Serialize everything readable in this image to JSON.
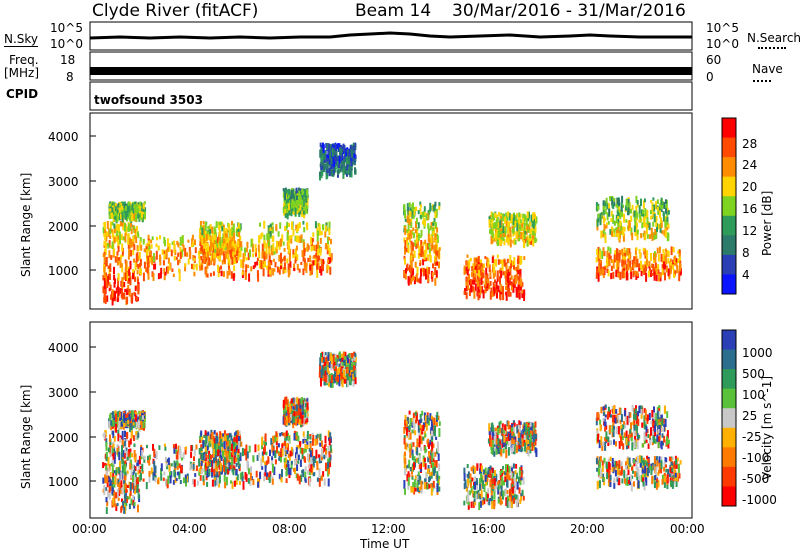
{
  "header": {
    "title": "Clyde River (fitACF)",
    "beam": "Beam 14",
    "date_range": "30/Mar/2016 - 31/Mar/2016"
  },
  "params": {
    "nsky_label": "N.Sky",
    "nsky_ticks": [
      "10^5",
      "10^0"
    ],
    "nsearch_label": "N.Search",
    "nsearch_ticks": [
      "10^5",
      "10^0"
    ],
    "freq_label": "Freq.",
    "freq_unit": "[MHz]",
    "freq_ticks": [
      "18",
      "8"
    ],
    "nave_label": "Nave",
    "nave_ticks": [
      "60",
      "0"
    ],
    "cpid_label": "CPID",
    "cpid_value": "twofsound 3503"
  },
  "chart_data": [
    {
      "type": "heatmap",
      "title": "",
      "ylabel": "Slant Range [km]",
      "xlabel": "",
      "ylim": [
        200,
        4600
      ],
      "xlim": [
        0,
        24
      ],
      "yticks": [
        "1000",
        "2000",
        "3000",
        "4000"
      ],
      "colorbar": {
        "label": "Power [dB]",
        "ticks": [
          "28",
          "24",
          "20",
          "16",
          "12",
          "8",
          "4"
        ],
        "colors": [
          "#ff0000",
          "#ff4a00",
          "#ff8c00",
          "#ffd400",
          "#7ed320",
          "#2e9b5a",
          "#2c7a6a",
          "#2a3fb5",
          "#0a14ff"
        ]
      }
    },
    {
      "type": "heatmap",
      "title": "",
      "ylabel": "Slant Range [km]",
      "xlabel": "Time UT",
      "ylim": [
        200,
        4600
      ],
      "xlim": [
        0,
        24
      ],
      "yticks": [
        "1000",
        "2000",
        "3000",
        "4000"
      ],
      "xticks": [
        "00:00",
        "04:00",
        "08:00",
        "12:00",
        "16:00",
        "20:00",
        "00:00"
      ],
      "colorbar": {
        "label": "Velocity [m s^-1]",
        "ticks": [
          "1000",
          "500",
          "100",
          "25",
          "-25",
          "-100",
          "-500",
          "-1000"
        ],
        "colors": [
          "#2a3fb5",
          "#2c6e8e",
          "#2e9b5a",
          "#59c13a",
          "#c8c8c8",
          "#ffb000",
          "#ff7a00",
          "#ff3a00",
          "#ff0000"
        ]
      }
    }
  ]
}
